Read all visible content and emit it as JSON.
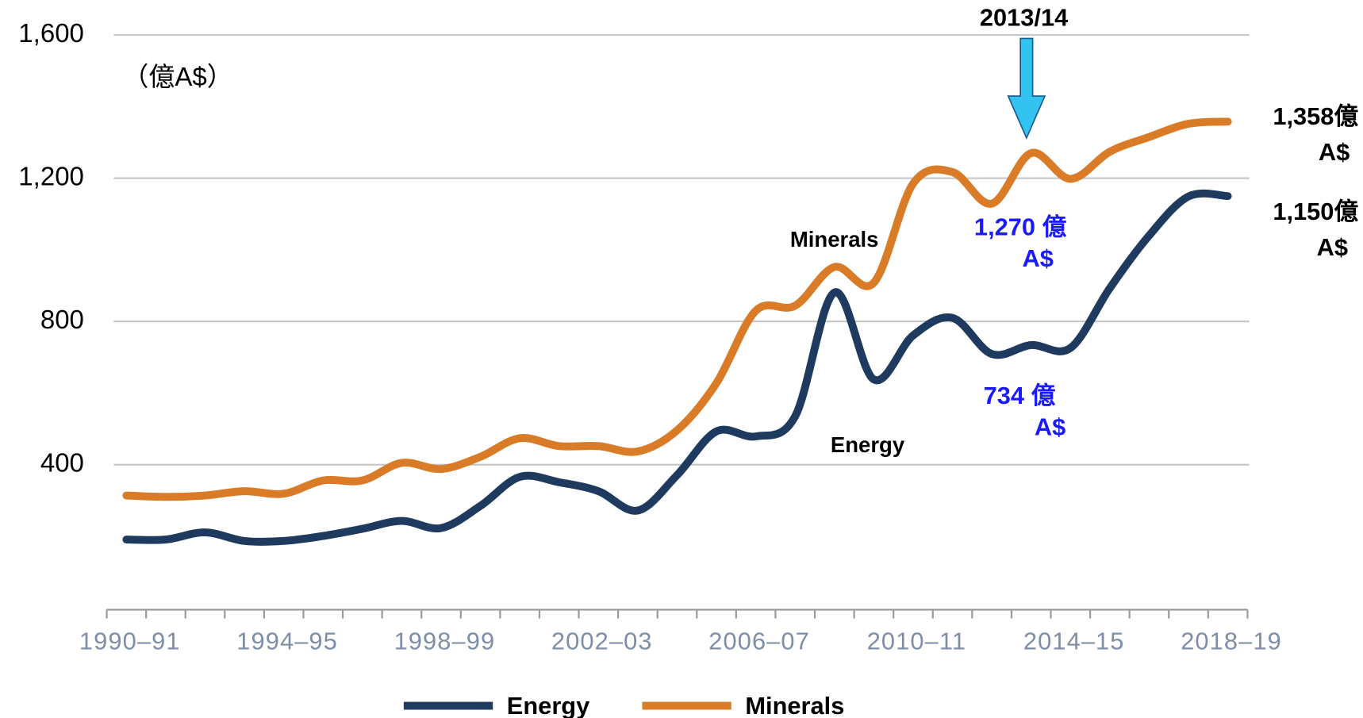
{
  "chart_data": {
    "type": "line",
    "unit_label": "（億A$）",
    "categories": [
      "1990–91",
      null,
      null,
      null,
      "1994–95",
      null,
      null,
      null,
      "1998–99",
      null,
      null,
      null,
      "2002–03",
      null,
      null,
      null,
      "2006–07",
      null,
      null,
      null,
      "2010–11",
      null,
      null,
      null,
      "2014–15",
      null,
      null,
      null,
      "2018–19"
    ],
    "series": [
      {
        "name": "Energy",
        "color": "#1f3a5f",
        "values": [
          191,
          191,
          211,
          187,
          187,
          201,
          221,
          243,
          223,
          285,
          366,
          351,
          326,
          272,
          371,
          493,
          479,
          535,
          881,
          638,
          761,
          810,
          709,
          734,
          726,
          893,
          1040,
          1149,
          1150
        ]
      },
      {
        "name": "Minerals",
        "color": "#d97b27",
        "values": [
          314,
          310,
          314,
          326,
          319,
          356,
          356,
          405,
          388,
          422,
          474,
          452,
          452,
          437,
          496,
          628,
          830,
          844,
          952,
          908,
          1185,
          1217,
          1129,
          1270,
          1198,
          1274,
          1315,
          1352,
          1358
        ]
      }
    ],
    "ylim": [
      0,
      1600
    ],
    "yticks": [
      {
        "value": 400,
        "label": "400"
      },
      {
        "value": 800,
        "label": "800"
      },
      {
        "value": 1200,
        "label": "1,200"
      },
      {
        "value": 1600,
        "label": "1,600"
      }
    ],
    "grid": true,
    "annotations": {
      "year_marker": "2013/14",
      "minerals_label": "Minerals",
      "energy_label": "Energy",
      "minerals_2013": [
        "1,270 億",
        "A$"
      ],
      "energy_2013": [
        "734 億",
        "A$"
      ],
      "minerals_end": [
        "1,358億",
        "A$"
      ],
      "energy_end": [
        "1,150億",
        "A$"
      ]
    }
  }
}
